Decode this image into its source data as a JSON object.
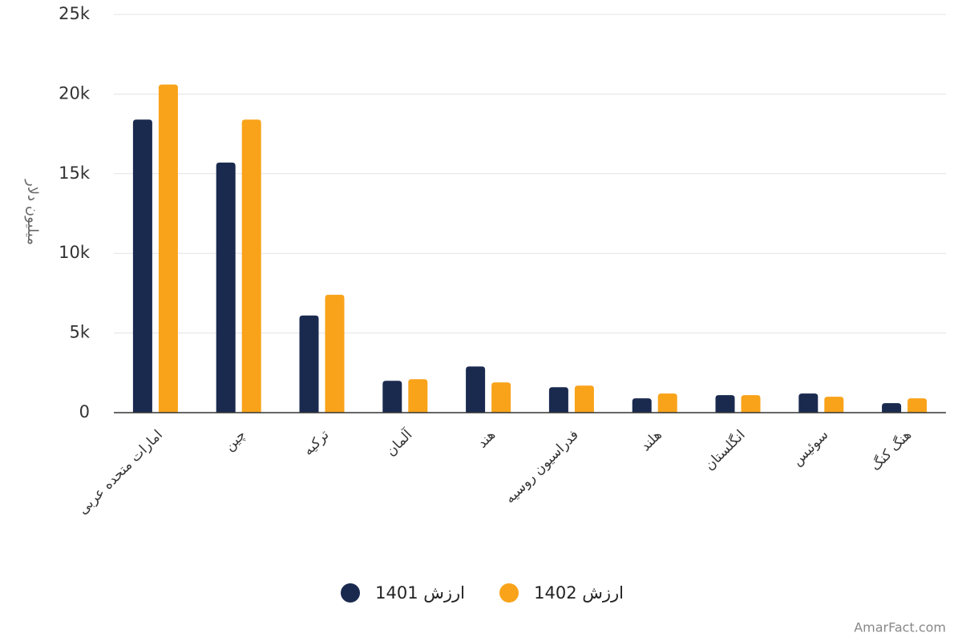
{
  "chart_data": {
    "type": "bar",
    "y_label": "میلیون دلار",
    "categories": [
      "امارات متحده عربی",
      "چین",
      "ترکیه",
      "آلمان",
      "هند",
      "فدراسیون روسیه",
      "هلند",
      "انگلستان",
      "سوئیس",
      "هنگ کنگ"
    ],
    "series": [
      {
        "name": "ارزش 1401",
        "color": "#1a2a4f",
        "values": [
          18400,
          15700,
          6100,
          2000,
          2900,
          1600,
          900,
          1100,
          1200,
          600
        ]
      },
      {
        "name": "ارزش 1402",
        "color": "#f9a31a",
        "values": [
          20600,
          18400,
          7400,
          2100,
          1900,
          1700,
          1200,
          1100,
          1000,
          900
        ]
      }
    ],
    "ylim": [
      0,
      25000
    ],
    "yticks": [
      0,
      {
        "value": 5000,
        "label": "5k"
      },
      {
        "value": 10000,
        "label": "10k"
      },
      {
        "value": 15000,
        "label": "15k"
      },
      {
        "value": 20000,
        "label": "20k"
      },
      {
        "value": 25000,
        "label": "25k"
      }
    ],
    "grid": true,
    "credit": "AmarFact.com"
  }
}
